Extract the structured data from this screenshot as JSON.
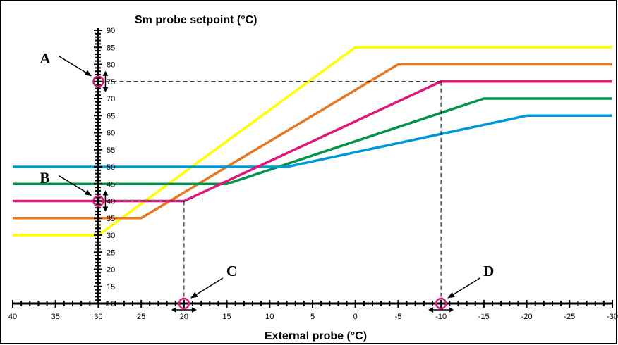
{
  "chart_data": {
    "type": "line",
    "title": "Sm probe setpoint (°C)",
    "xlabel": "External probe (°C)",
    "ylabel": "Sm probe setpoint (°C)",
    "xlim": [
      40,
      -30
    ],
    "ylim": [
      10,
      90
    ],
    "x_ticks": [
      "40",
      "35",
      "30",
      "25",
      "20",
      "15",
      "10",
      "5",
      "0",
      "-5",
      "-10",
      "-15",
      "-20",
      "-25",
      "-30"
    ],
    "y_ticks": [
      "10",
      "15",
      "20",
      "25",
      "30",
      "35",
      "40",
      "45",
      "50",
      "55",
      "60",
      "65",
      "70",
      "75",
      "80",
      "85",
      "90"
    ],
    "series": [
      {
        "color": "#ffff00",
        "points": [
          [
            40,
            30
          ],
          [
            30,
            30
          ],
          [
            0,
            85
          ],
          [
            -30,
            85
          ]
        ]
      },
      {
        "color": "#e87722",
        "points": [
          [
            40,
            35
          ],
          [
            25,
            35
          ],
          [
            -5,
            80
          ],
          [
            -30,
            80
          ]
        ]
      },
      {
        "color": "#00944a",
        "points": [
          [
            40,
            45
          ],
          [
            15,
            45
          ],
          [
            -15,
            70
          ],
          [
            -30,
            70
          ]
        ]
      },
      {
        "color": "#0099d8",
        "points": [
          [
            40,
            50
          ],
          [
            8,
            50
          ],
          [
            -20,
            65
          ],
          [
            -30,
            65
          ]
        ]
      },
      {
        "color": "#e0177a",
        "points": [
          [
            40,
            40
          ],
          [
            20,
            40
          ],
          [
            -10,
            75
          ],
          [
            -30,
            75
          ]
        ]
      }
    ],
    "guides": [
      {
        "points": [
          [
            30,
            75
          ],
          [
            -10,
            75
          ]
        ]
      },
      {
        "points": [
          [
            -10,
            75
          ],
          [
            -10,
            10
          ]
        ]
      },
      {
        "points": [
          [
            30,
            40
          ],
          [
            18,
            40
          ]
        ]
      },
      {
        "points": [
          [
            20,
            40
          ],
          [
            20,
            10
          ]
        ]
      }
    ],
    "markers": [
      {
        "label": "A",
        "at": [
          30,
          75
        ],
        "arrow": "vertical"
      },
      {
        "label": "B",
        "at": [
          30,
          40
        ],
        "arrow": "vertical"
      },
      {
        "label": "C",
        "at": [
          20,
          10
        ],
        "arrow": "horizontal"
      },
      {
        "label": "D",
        "at": [
          -10,
          10
        ],
        "arrow": "horizontal"
      }
    ],
    "marker_color": "#d6177a",
    "grid": false,
    "legend": "none"
  }
}
